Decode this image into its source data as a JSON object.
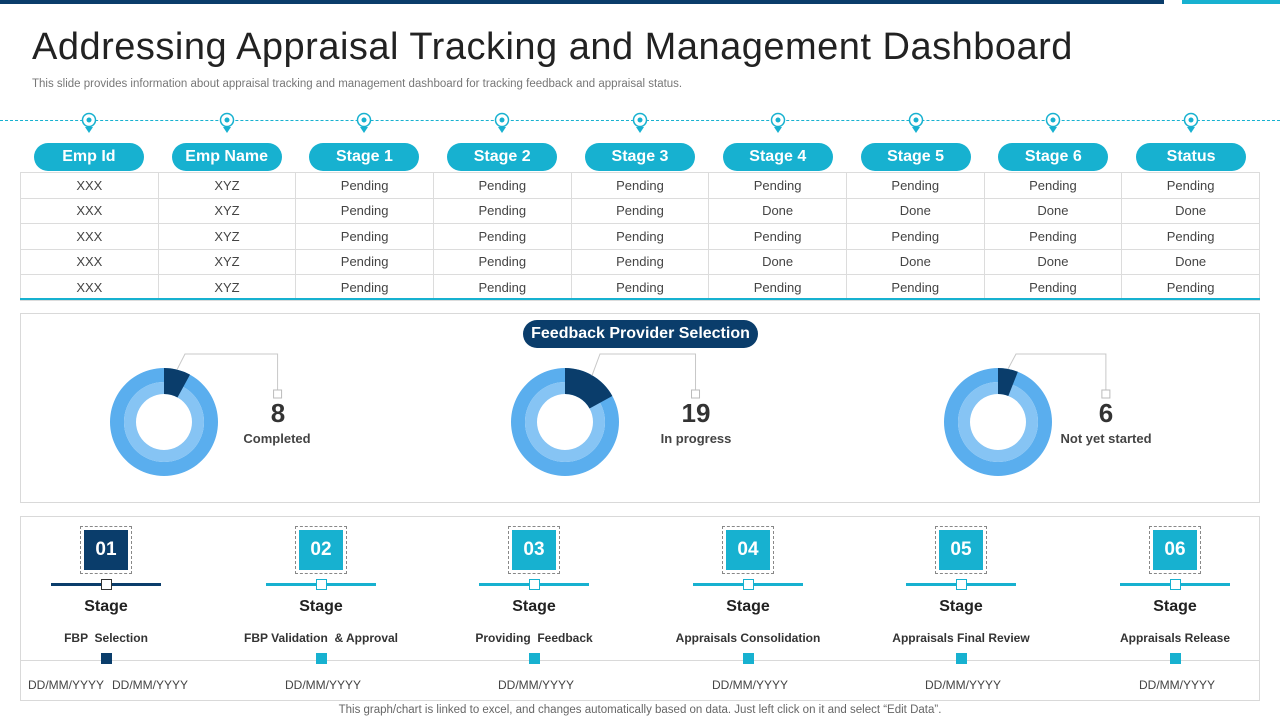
{
  "title": "Addressing Appraisal Tracking and Management Dashboard",
  "subtitle": "This slide provides information about appraisal tracking and management dashboard for tracking feedback and appraisal status.",
  "colors": {
    "accent": "#17b1d0",
    "dark": "#0a3d6b",
    "donut_outer": "#5aaeee",
    "donut_inner": "#86c4f4",
    "donut_slice": "#0a3d6b"
  },
  "table": {
    "headers": [
      "Emp Id",
      "Emp Name",
      "Stage 1",
      "Stage 2",
      "Stage 3",
      "Stage 4",
      "Stage 5",
      "Stage 6",
      "Status"
    ],
    "rows": [
      [
        "XXX",
        "XYZ",
        "Pending",
        "Pending",
        "Pending",
        "Pending",
        "Pending",
        "Pending",
        "Pending"
      ],
      [
        "XXX",
        "XYZ",
        "Pending",
        "Pending",
        "Pending",
        "Done",
        "Done",
        "Done",
        "Done"
      ],
      [
        "XXX",
        "XYZ",
        "Pending",
        "Pending",
        "Pending",
        "Pending",
        "Pending",
        "Pending",
        "Pending"
      ],
      [
        "XXX",
        "XYZ",
        "Pending",
        "Pending",
        "Pending",
        "Done",
        "Done",
        "Done",
        "Done"
      ],
      [
        "XXX",
        "XYZ",
        "Pending",
        "Pending",
        "Pending",
        "Pending",
        "Pending",
        "Pending",
        "Pending"
      ]
    ]
  },
  "feedback": {
    "title": "Feedback Provider Selection"
  },
  "chart_data": {
    "type": "pie",
    "title": "Feedback Provider Selection",
    "donuts": [
      {
        "value": 8,
        "label": "Completed",
        "share": 0.08
      },
      {
        "value": 19,
        "label": "In progress",
        "share": 0.17
      },
      {
        "value": 6,
        "label": "Not yet started",
        "share": 0.06
      }
    ]
  },
  "stages": [
    {
      "num": "01",
      "word": "Stage",
      "name": "FBP  Selection",
      "dates": [
        "DD/MM/YYYY",
        "DD/MM/YYYY"
      ]
    },
    {
      "num": "02",
      "word": "Stage",
      "name": "FBP Validation  & Approval",
      "dates": [
        "DD/MM/YYYY"
      ]
    },
    {
      "num": "03",
      "word": "Stage",
      "name": "Providing  Feedback",
      "dates": [
        "DD/MM/YYYY"
      ]
    },
    {
      "num": "04",
      "word": "Stage",
      "name": "Appraisals Consolidation",
      "dates": [
        "DD/MM/YYYY"
      ]
    },
    {
      "num": "05",
      "word": "Stage",
      "name": "Appraisals Final Review",
      "dates": [
        "DD/MM/YYYY"
      ]
    },
    {
      "num": "06",
      "word": "Stage",
      "name": "Appraisals Release",
      "dates": [
        "DD/MM/YYYY"
      ]
    }
  ],
  "footer": "This graph/chart is linked to excel,  and changes automatically based on data. Just left click on it and select “Edit Data”."
}
